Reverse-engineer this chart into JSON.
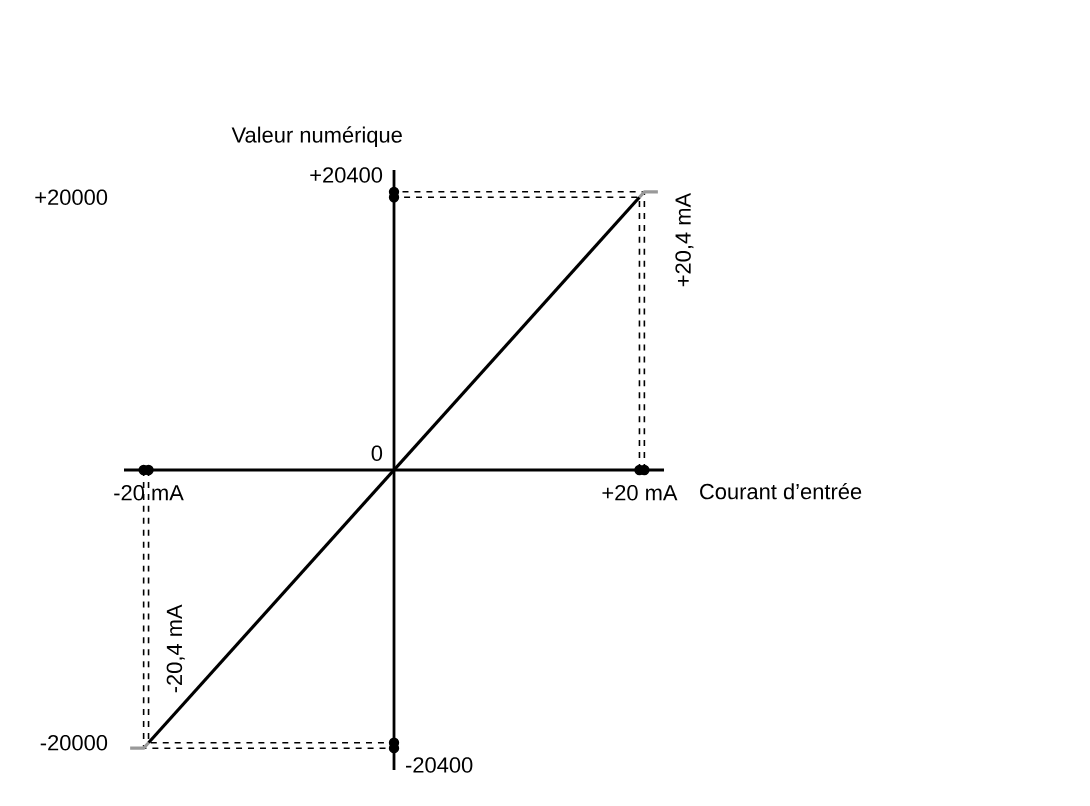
{
  "chart_data": {
    "type": "line",
    "xlabel": "Courant d’entrée",
    "ylabel": "Valeur numérique",
    "xlim": [
      -22,
      22
    ],
    "ylim": [
      -22000,
      22000
    ],
    "xticks": [
      {
        "value": -20,
        "label": "-20 mA"
      },
      {
        "value": 20,
        "label": "+20 mA"
      }
    ],
    "yticks": [
      {
        "value": -20000,
        "label": "-20000"
      },
      {
        "value": 20000,
        "label": "+20000"
      }
    ],
    "series": [
      {
        "color": "#000000",
        "line_style": "dashed",
        "marker": "circle",
        "x": [
          -20.4,
          -20.4,
          0
        ],
        "values": [
          0,
          -20400,
          -20400
        ]
      },
      {
        "color": "#000000",
        "line_style": "dashed",
        "marker": "circle",
        "x": [
          -20,
          -20,
          0
        ],
        "values": [
          0,
          -20000,
          -20000
        ]
      },
      {
        "color": "#000000",
        "line_style": "dashed",
        "marker": "circle",
        "x": [
          20,
          20,
          0
        ],
        "values": [
          0,
          20000,
          20000
        ]
      },
      {
        "color": "#000000",
        "line_style": "dashed",
        "marker": "circle",
        "x": [
          20.4,
          20.4,
          0
        ],
        "values": [
          0,
          20400,
          20400
        ]
      },
      {
        "color": "#000000",
        "x": [
          -20,
          20
        ],
        "values": [
          -20000,
          20000
        ]
      },
      {
        "color": "#999999",
        "x": [
          -21.5,
          -20.4,
          -20
        ],
        "values": [
          -20400,
          -20400,
          -20000
        ]
      },
      {
        "color": "#999999",
        "x": [
          20,
          20.4,
          21.5
        ],
        "values": [
          20000,
          20400,
          20400
        ]
      }
    ],
    "annotations": [
      {
        "text": "0",
        "x": 0,
        "y": 0
      },
      {
        "text": "+20400",
        "x": 0,
        "y": 20400
      },
      {
        "text": "-20400",
        "x": 0,
        "y": -20400
      },
      {
        "text": "+20,4 mA",
        "x": 20.4,
        "y": 20400
      },
      {
        "text": "-20,4 mA",
        "x": -20.4,
        "y": -20400
      }
    ]
  }
}
